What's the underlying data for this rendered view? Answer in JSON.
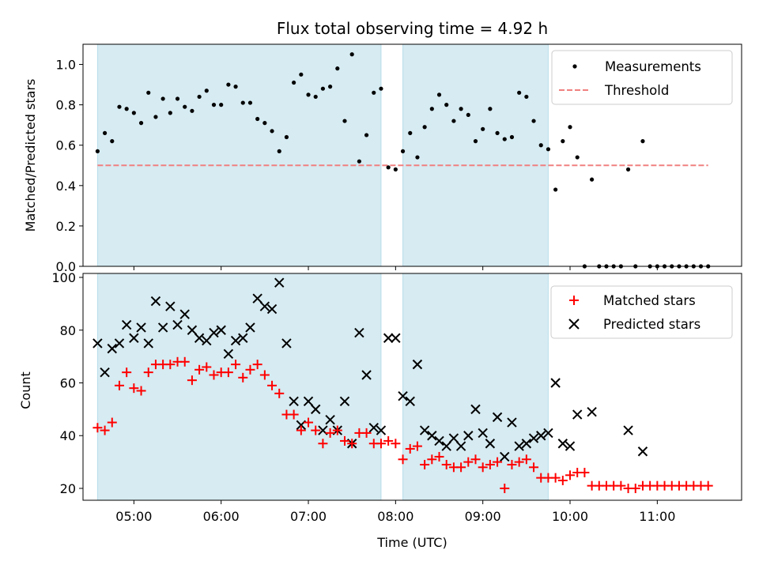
{
  "chart_data": [
    {
      "type": "scatter",
      "title": "Flux total observing time = 4.92 h",
      "xlabel": "",
      "ylabel": "Matched/Predicted stars",
      "ylim": [
        0,
        1.1
      ],
      "yticks": [
        "0.0",
        "0.2",
        "0.4",
        "0.6",
        "0.8",
        "1.0"
      ],
      "xticks": [
        "05:00",
        "06:00",
        "07:00",
        "08:00",
        "09:00",
        "10:00",
        "11:00"
      ],
      "xlim": [
        "04:25",
        "11:58"
      ],
      "shaded_intervals": [
        [
          "04:35",
          "07:50"
        ],
        [
          "08:05",
          "09:45"
        ]
      ],
      "shade_color": "#add8e6",
      "threshold": 0.5,
      "legend_position": "top-right",
      "legend": [
        {
          "label": "Measurements",
          "color": "#000000",
          "marker": "dot"
        },
        {
          "label": "Threshold",
          "color": "#f08080",
          "marker": "dashed-line"
        }
      ],
      "series": [
        {
          "name": "Measurements",
          "color": "#000000",
          "points": [
            [
              "04:35",
              0.57
            ],
            [
              "04:40",
              0.66
            ],
            [
              "04:45",
              0.62
            ],
            [
              "04:50",
              0.79
            ],
            [
              "04:55",
              0.78
            ],
            [
              "05:00",
              0.76
            ],
            [
              "05:05",
              0.71
            ],
            [
              "05:10",
              0.86
            ],
            [
              "05:15",
              0.74
            ],
            [
              "05:20",
              0.83
            ],
            [
              "05:25",
              0.76
            ],
            [
              "05:30",
              0.83
            ],
            [
              "05:35",
              0.79
            ],
            [
              "05:40",
              0.77
            ],
            [
              "05:45",
              0.84
            ],
            [
              "05:50",
              0.87
            ],
            [
              "05:55",
              0.8
            ],
            [
              "06:00",
              0.8
            ],
            [
              "06:05",
              0.9
            ],
            [
              "06:10",
              0.89
            ],
            [
              "06:15",
              0.81
            ],
            [
              "06:20",
              0.81
            ],
            [
              "06:25",
              0.73
            ],
            [
              "06:30",
              0.71
            ],
            [
              "06:35",
              0.67
            ],
            [
              "06:40",
              0.57
            ],
            [
              "06:45",
              0.64
            ],
            [
              "06:50",
              0.91
            ],
            [
              "06:55",
              0.95
            ],
            [
              "07:00",
              0.85
            ],
            [
              "07:05",
              0.84
            ],
            [
              "07:10",
              0.88
            ],
            [
              "07:15",
              0.89
            ],
            [
              "07:20",
              0.98
            ],
            [
              "07:25",
              0.72
            ],
            [
              "07:30",
              1.05
            ],
            [
              "07:35",
              0.52
            ],
            [
              "07:40",
              0.65
            ],
            [
              "07:45",
              0.86
            ],
            [
              "07:50",
              0.88
            ],
            [
              "07:55",
              0.49
            ],
            [
              "08:00",
              0.48
            ],
            [
              "08:05",
              0.57
            ],
            [
              "08:10",
              0.66
            ],
            [
              "08:15",
              0.54
            ],
            [
              "08:20",
              0.69
            ],
            [
              "08:25",
              0.78
            ],
            [
              "08:30",
              0.85
            ],
            [
              "08:35",
              0.8
            ],
            [
              "08:40",
              0.72
            ],
            [
              "08:45",
              0.78
            ],
            [
              "08:50",
              0.75
            ],
            [
              "08:55",
              0.62
            ],
            [
              "09:00",
              0.68
            ],
            [
              "09:05",
              0.78
            ],
            [
              "09:10",
              0.66
            ],
            [
              "09:15",
              0.63
            ],
            [
              "09:20",
              0.64
            ],
            [
              "09:25",
              0.86
            ],
            [
              "09:30",
              0.84
            ],
            [
              "09:35",
              0.72
            ],
            [
              "09:40",
              0.6
            ],
            [
              "09:45",
              0.58
            ],
            [
              "09:50",
              0.38
            ],
            [
              "09:55",
              0.62
            ],
            [
              "10:00",
              0.69
            ],
            [
              "10:05",
              0.54
            ],
            [
              "10:10",
              0.0
            ],
            [
              "10:15",
              0.43
            ],
            [
              "10:20",
              0.0
            ],
            [
              "10:25",
              0.0
            ],
            [
              "10:30",
              0.0
            ],
            [
              "10:35",
              0.0
            ],
            [
              "10:40",
              0.48
            ],
            [
              "10:45",
              0.0
            ],
            [
              "10:50",
              0.62
            ],
            [
              "10:55",
              0.0
            ],
            [
              "11:00",
              0.0
            ],
            [
              "11:05",
              0.0
            ],
            [
              "11:10",
              0.0
            ],
            [
              "11:15",
              0.0
            ],
            [
              "11:20",
              0.0
            ],
            [
              "11:25",
              0.0
            ],
            [
              "11:30",
              0.0
            ],
            [
              "11:35",
              0.0
            ]
          ]
        }
      ]
    },
    {
      "type": "scatter",
      "title": "",
      "xlabel": "Time (UTC)",
      "ylabel": "Count",
      "ylim": [
        15.5,
        101.5
      ],
      "yticks": [
        "20",
        "40",
        "60",
        "80",
        "100"
      ],
      "xticks": [
        "05:00",
        "06:00",
        "07:00",
        "08:00",
        "09:00",
        "10:00",
        "11:00"
      ],
      "xlim": [
        "04:25",
        "11:58"
      ],
      "shaded_intervals": [
        [
          "04:35",
          "07:50"
        ],
        [
          "08:05",
          "09:45"
        ]
      ],
      "shade_color": "#add8e6",
      "legend_position": "top-right",
      "legend": [
        {
          "label": "Matched stars",
          "color": "#ff0000",
          "marker": "plus"
        },
        {
          "label": "Predicted stars",
          "color": "#000000",
          "marker": "x"
        }
      ],
      "series": [
        {
          "name": "Matched stars",
          "color": "#ff0000",
          "marker": "plus",
          "points": [
            [
              "04:35",
              43
            ],
            [
              "04:40",
              42
            ],
            [
              "04:45",
              45
            ],
            [
              "04:50",
              59
            ],
            [
              "04:55",
              64
            ],
            [
              "05:00",
              58
            ],
            [
              "05:05",
              57
            ],
            [
              "05:10",
              64
            ],
            [
              "05:15",
              67
            ],
            [
              "05:20",
              67
            ],
            [
              "05:25",
              67
            ],
            [
              "05:30",
              68
            ],
            [
              "05:35",
              68
            ],
            [
              "05:40",
              61
            ],
            [
              "05:45",
              65
            ],
            [
              "05:50",
              66
            ],
            [
              "05:55",
              63
            ],
            [
              "06:00",
              64
            ],
            [
              "06:05",
              64
            ],
            [
              "06:10",
              67
            ],
            [
              "06:15",
              62
            ],
            [
              "06:20",
              65
            ],
            [
              "06:25",
              67
            ],
            [
              "06:30",
              63
            ],
            [
              "06:35",
              59
            ],
            [
              "06:40",
              56
            ],
            [
              "06:45",
              48
            ],
            [
              "06:50",
              48
            ],
            [
              "06:55",
              42
            ],
            [
              "07:00",
              45
            ],
            [
              "07:05",
              42
            ],
            [
              "07:10",
              37
            ],
            [
              "07:15",
              41
            ],
            [
              "07:20",
              42
            ],
            [
              "07:25",
              38
            ],
            [
              "07:30",
              37
            ],
            [
              "07:35",
              41
            ],
            [
              "07:40",
              41
            ],
            [
              "07:45",
              37
            ],
            [
              "07:50",
              37
            ],
            [
              "07:55",
              38
            ],
            [
              "08:00",
              37
            ],
            [
              "08:05",
              31
            ],
            [
              "08:10",
              35
            ],
            [
              "08:15",
              36
            ],
            [
              "08:20",
              29
            ],
            [
              "08:25",
              31
            ],
            [
              "08:30",
              32
            ],
            [
              "08:35",
              29
            ],
            [
              "08:40",
              28
            ],
            [
              "08:45",
              28
            ],
            [
              "08:50",
              30
            ],
            [
              "08:55",
              31
            ],
            [
              "09:00",
              28
            ],
            [
              "09:05",
              29
            ],
            [
              "09:10",
              30
            ],
            [
              "09:15",
              20
            ],
            [
              "09:20",
              29
            ],
            [
              "09:25",
              30
            ],
            [
              "09:30",
              31
            ],
            [
              "09:35",
              28
            ],
            [
              "09:40",
              24
            ],
            [
              "09:45",
              24
            ],
            [
              "09:50",
              24
            ],
            [
              "09:55",
              23
            ],
            [
              "10:00",
              25
            ],
            [
              "10:05",
              26
            ],
            [
              "10:10",
              26
            ],
            [
              "10:15",
              21
            ],
            [
              "10:20",
              21
            ],
            [
              "10:25",
              21
            ],
            [
              "10:30",
              21
            ],
            [
              "10:35",
              21
            ],
            [
              "10:40",
              20
            ],
            [
              "10:45",
              20
            ],
            [
              "10:50",
              21
            ],
            [
              "10:55",
              21
            ],
            [
              "11:00",
              21
            ],
            [
              "11:05",
              21
            ],
            [
              "11:10",
              21
            ],
            [
              "11:15",
              21
            ],
            [
              "11:20",
              21
            ],
            [
              "11:25",
              21
            ],
            [
              "11:30",
              21
            ],
            [
              "11:35",
              21
            ]
          ]
        },
        {
          "name": "Predicted stars",
          "color": "#000000",
          "marker": "x",
          "points": [
            [
              "04:35",
              75
            ],
            [
              "04:40",
              64
            ],
            [
              "04:45",
              73
            ],
            [
              "04:50",
              75
            ],
            [
              "04:55",
              82
            ],
            [
              "05:00",
              77
            ],
            [
              "05:05",
              81
            ],
            [
              "05:10",
              75
            ],
            [
              "05:15",
              91
            ],
            [
              "05:20",
              81
            ],
            [
              "05:25",
              89
            ],
            [
              "05:30",
              82
            ],
            [
              "05:35",
              86
            ],
            [
              "05:40",
              80
            ],
            [
              "05:45",
              77
            ],
            [
              "05:50",
              76
            ],
            [
              "05:55",
              79
            ],
            [
              "06:00",
              80
            ],
            [
              "06:05",
              71
            ],
            [
              "06:10",
              76
            ],
            [
              "06:15",
              77
            ],
            [
              "06:20",
              81
            ],
            [
              "06:25",
              92
            ],
            [
              "06:30",
              89
            ],
            [
              "06:35",
              88
            ],
            [
              "06:40",
              98
            ],
            [
              "06:45",
              75
            ],
            [
              "06:50",
              53
            ],
            [
              "06:55",
              44
            ],
            [
              "07:00",
              53
            ],
            [
              "07:05",
              50
            ],
            [
              "07:10",
              42
            ],
            [
              "07:15",
              46
            ],
            [
              "07:20",
              42
            ],
            [
              "07:25",
              53
            ],
            [
              "07:30",
              37
            ],
            [
              "07:35",
              79
            ],
            [
              "07:40",
              63
            ],
            [
              "07:45",
              43
            ],
            [
              "07:50",
              42
            ],
            [
              "07:55",
              77
            ],
            [
              "08:00",
              77
            ],
            [
              "08:05",
              55
            ],
            [
              "08:10",
              53
            ],
            [
              "08:15",
              67
            ],
            [
              "08:20",
              42
            ],
            [
              "08:25",
              40
            ],
            [
              "08:30",
              38
            ],
            [
              "08:35",
              36
            ],
            [
              "08:40",
              39
            ],
            [
              "08:45",
              36
            ],
            [
              "08:50",
              40
            ],
            [
              "08:55",
              50
            ],
            [
              "09:00",
              41
            ],
            [
              "09:05",
              37
            ],
            [
              "09:10",
              47
            ],
            [
              "09:15",
              32
            ],
            [
              "09:20",
              45
            ],
            [
              "09:25",
              36
            ],
            [
              "09:30",
              37
            ],
            [
              "09:35",
              39
            ],
            [
              "09:40",
              40
            ],
            [
              "09:45",
              41
            ],
            [
              "09:50",
              60
            ],
            [
              "09:55",
              37
            ],
            [
              "10:00",
              36
            ],
            [
              "10:05",
              48
            ],
            [
              "10:15",
              49
            ],
            [
              "10:40",
              42
            ],
            [
              "10:50",
              34
            ]
          ]
        }
      ]
    }
  ]
}
